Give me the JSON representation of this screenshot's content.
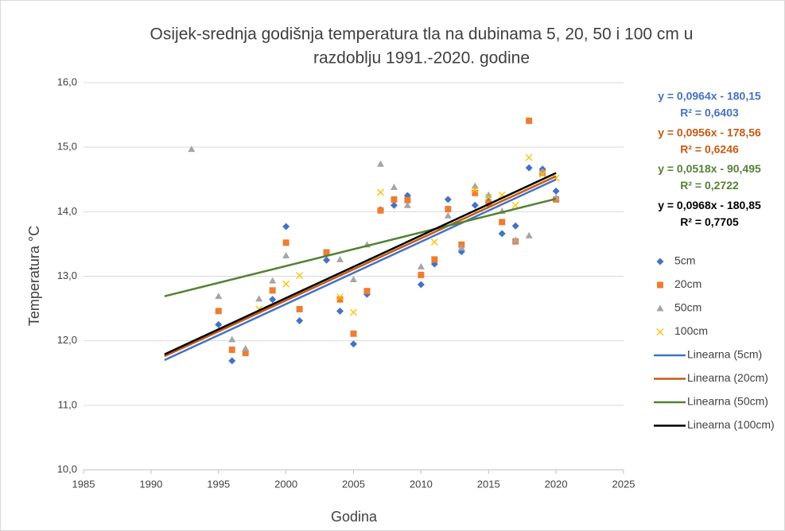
{
  "chart_data": {
    "type": "scatter",
    "title": [
      "Osijek-srednja godišnja temperatura tla na dubinama 5, 20, 50 i 100 cm u",
      "razdoblju 1991.-2020. godine"
    ],
    "x_label": "Godina",
    "y_label": "Temperatura °C",
    "xlim": [
      1985,
      2025
    ],
    "xticks": [
      1985,
      1990,
      1995,
      2000,
      2005,
      2010,
      2015,
      2020,
      2025
    ],
    "ylim": [
      10,
      16
    ],
    "yticks": [
      {
        "value": 10,
        "label": "10,0"
      },
      {
        "value": 11,
        "label": "11,0"
      },
      {
        "value": 12,
        "label": "12,0"
      },
      {
        "value": 13,
        "label": "13,0"
      },
      {
        "value": 14,
        "label": "14,0"
      },
      {
        "value": 15,
        "label": "15,0"
      },
      {
        "value": 16,
        "label": "16,0"
      }
    ],
    "grid": true,
    "legend": "right",
    "series": [
      {
        "name": "5cm",
        "color": "#4472c4",
        "marker": "diamond",
        "x": [
          1995,
          1996,
          1999,
          2000,
          2001,
          2003,
          2004,
          2005,
          2006,
          2007,
          2008,
          2009,
          2010,
          2011,
          2012,
          2013,
          2014,
          2015,
          2016,
          2017,
          2018,
          2019,
          2020
        ],
        "values": [
          12.25,
          11.69,
          12.64,
          13.77,
          12.31,
          13.25,
          12.46,
          11.95,
          12.72,
          14.03,
          14.1,
          14.25,
          12.87,
          13.19,
          14.19,
          13.38,
          14.1,
          14.18,
          13.66,
          13.78,
          14.68,
          14.66,
          14.32
        ]
      },
      {
        "name": "20cm",
        "color": "#ed7d31",
        "marker": "square",
        "x": [
          1995,
          1996,
          1997,
          1999,
          2000,
          2001,
          2003,
          2004,
          2005,
          2006,
          2007,
          2008,
          2009,
          2010,
          2011,
          2012,
          2013,
          2014,
          2015,
          2016,
          2017,
          2018,
          2019,
          2020
        ],
        "values": [
          12.46,
          11.86,
          11.81,
          12.78,
          13.52,
          12.49,
          13.37,
          12.64,
          12.11,
          12.77,
          14.02,
          14.19,
          14.18,
          13.02,
          13.26,
          14.04,
          13.49,
          14.29,
          14.13,
          13.84,
          13.54,
          15.41,
          14.6,
          14.19
        ]
      },
      {
        "name": "50cm",
        "color": "#a5a5a5",
        "marker": "triangle",
        "x": [
          1993,
          1995,
          1996,
          1997,
          1998,
          1999,
          2000,
          2004,
          2005,
          2006,
          2007,
          2008,
          2009,
          2010,
          2012,
          2013,
          2014,
          2015,
          2016,
          2017,
          2018,
          2019,
          2020
        ],
        "values": [
          14.97,
          12.69,
          12.02,
          11.88,
          12.65,
          12.93,
          13.32,
          13.26,
          12.95,
          13.49,
          14.74,
          14.38,
          14.1,
          13.15,
          13.94,
          13.44,
          14.4,
          14.26,
          14.01,
          13.56,
          13.63,
          14.62,
          14.22
        ]
      },
      {
        "name": "100cm",
        "color": "#ffc000",
        "marker": "x",
        "x": [
          1998,
          2000,
          2001,
          2004,
          2005,
          2007,
          2011,
          2014,
          2015,
          2016,
          2017,
          2018,
          2019,
          2020
        ],
        "values": [
          12.49,
          12.88,
          13.01,
          12.68,
          12.44,
          14.3,
          13.53,
          14.34,
          14.22,
          14.26,
          14.1,
          14.84,
          14.58,
          14.52
        ]
      }
    ],
    "trendlines": [
      {
        "name": "Linearna (5cm)",
        "color": "#4472c4",
        "x": [
          1991,
          2020
        ],
        "values": [
          11.7,
          14.5
        ],
        "equation": "y = 0,0964x - 180,15",
        "r2": "R² = 0,6403"
      },
      {
        "name": "Linearna (20cm)",
        "color": "#c55a11",
        "x": [
          1991,
          2020
        ],
        "values": [
          11.76,
          14.55
        ],
        "equation": "y = 0,0956x - 178,56",
        "r2": "R² = 0,6246"
      },
      {
        "name": "Linearna (50cm)",
        "color": "#548235",
        "x": [
          1991,
          2020
        ],
        "values": [
          12.69,
          14.2
        ],
        "equation": "y = 0,0518x - 90,495",
        "r2": "R² = 0,2722"
      },
      {
        "name": "Linearna (100cm)",
        "color": "#000000",
        "x": [
          1991,
          2020
        ],
        "values": [
          11.79,
          14.6
        ],
        "equation": "y = 0,0968x - 180,85",
        "r2": "R² = 0,7705"
      }
    ]
  }
}
